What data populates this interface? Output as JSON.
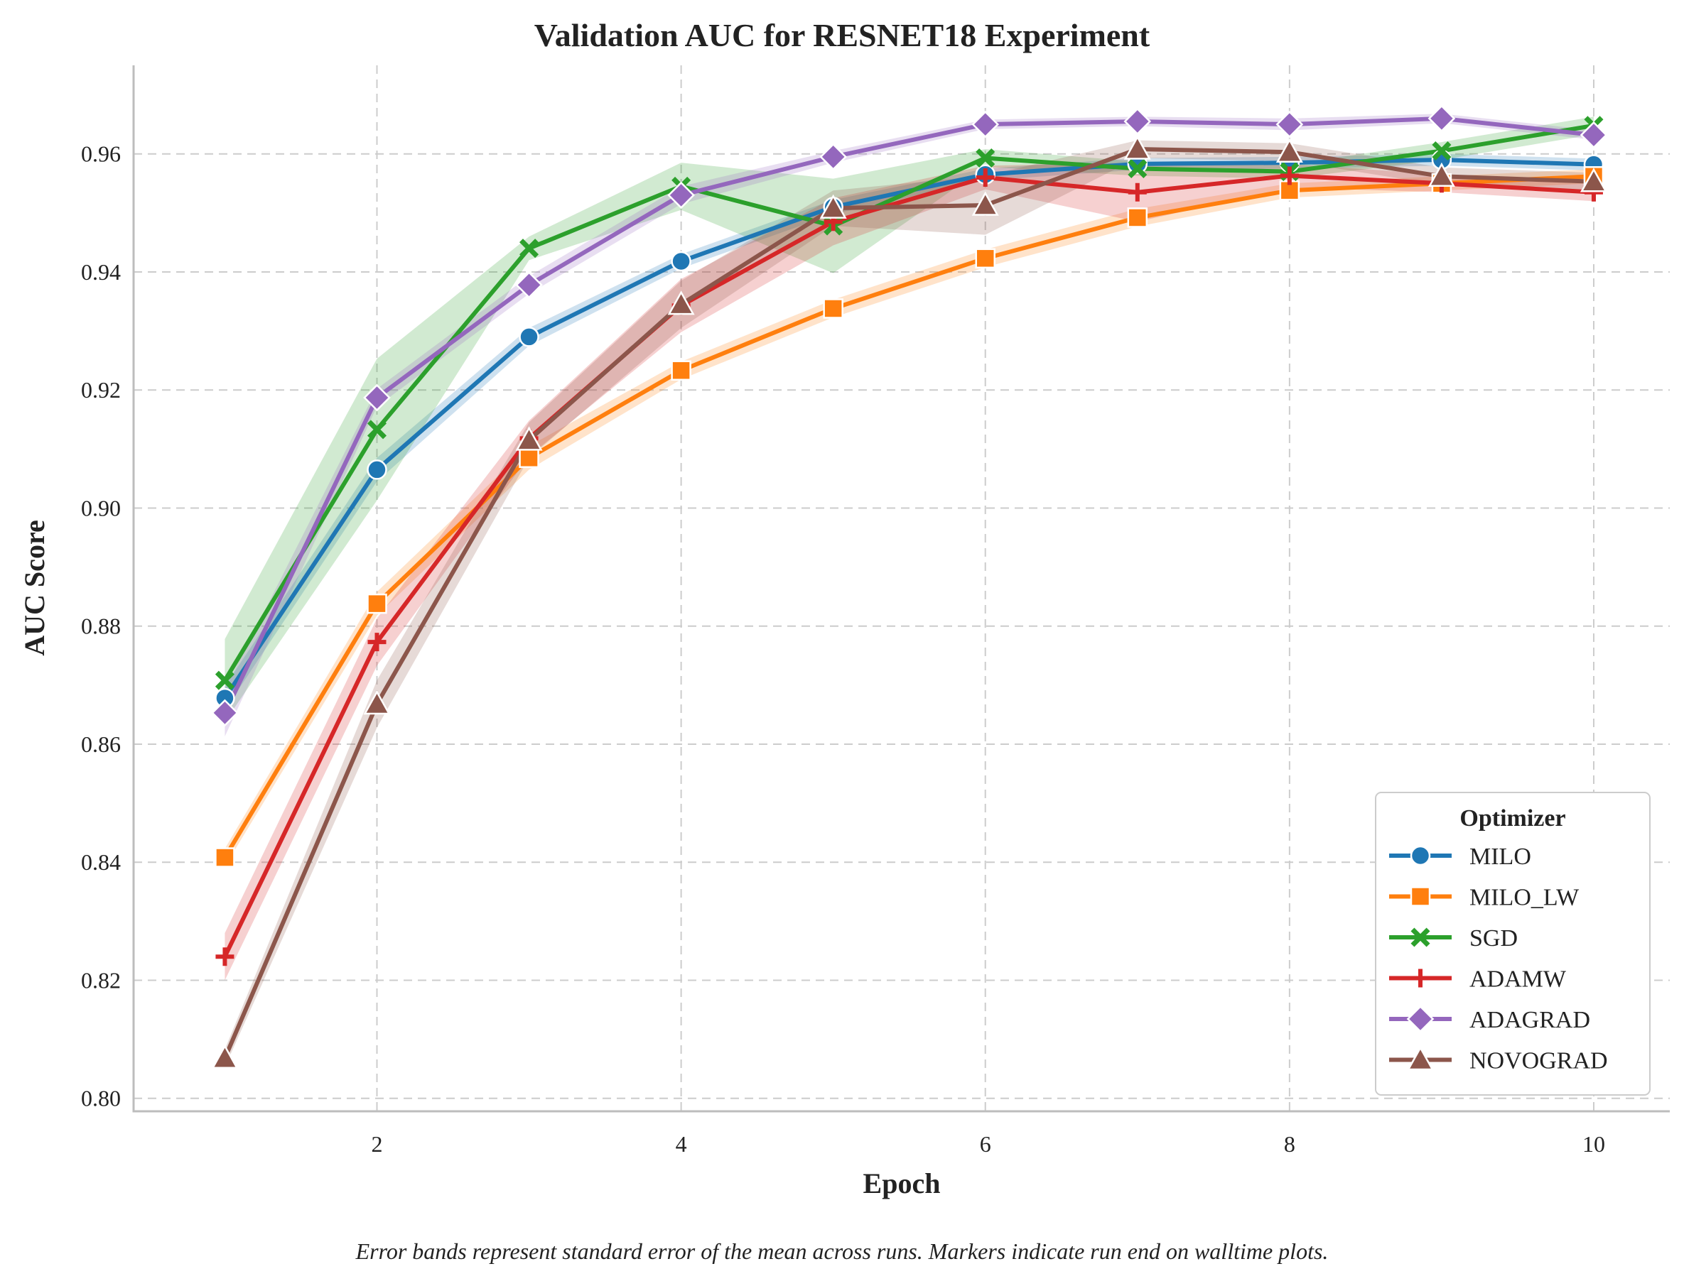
{
  "chart_data": {
    "type": "line",
    "title": "Validation AUC for RESNET18 Experiment",
    "xlabel": "Epoch",
    "ylabel": "AUC Score",
    "xlim": [
      0.4,
      10.5
    ],
    "ylim": [
      0.7978,
      0.975
    ],
    "xticks": [
      2,
      4,
      6,
      8,
      10
    ],
    "yticks": [
      0.8,
      0.82,
      0.84,
      0.86,
      0.88,
      0.9,
      0.92,
      0.94,
      0.96
    ],
    "grid": true,
    "legend": {
      "title": "Optimizer",
      "placement": "bottom-right"
    },
    "caption": "Error bands represent standard error of the mean across runs. Markers indicate run end on walltime plots.",
    "x": [
      1,
      2,
      3,
      4,
      5,
      6,
      7,
      8,
      9,
      10
    ],
    "series": [
      {
        "name": "MILO",
        "color": "#1f77b4",
        "marker": "circle",
        "values": [
          0.8678,
          0.9065,
          0.929,
          0.9418,
          0.951,
          0.9565,
          0.9583,
          0.9585,
          0.959,
          0.9582
        ],
        "err": [
          0.002,
          0.002,
          0.0015,
          0.0012,
          0.0012,
          0.001,
          0.001,
          0.001,
          0.001,
          0.001
        ]
      },
      {
        "name": "MILO_LW",
        "color": "#ff7f0e",
        "marker": "square",
        "values": [
          0.8408,
          0.8838,
          0.9085,
          0.9233,
          0.9338,
          0.9423,
          0.9492,
          0.9538,
          0.955,
          0.9562
        ],
        "err": [
          0.0015,
          0.002,
          0.002,
          0.0015,
          0.0015,
          0.0015,
          0.0015,
          0.0012,
          0.0012,
          0.0012
        ]
      },
      {
        "name": "SGD",
        "color": "#2ca02c",
        "marker": "x",
        "values": [
          0.8708,
          0.9133,
          0.944,
          0.9545,
          0.9478,
          0.9593,
          0.9575,
          0.957,
          0.9605,
          0.9648
        ],
        "err": [
          0.007,
          0.012,
          0.002,
          0.004,
          0.008,
          0.0015,
          0.0012,
          0.0012,
          0.0015,
          0.0015
        ]
      },
      {
        "name": "ADAMW",
        "color": "#d62728",
        "marker": "plus",
        "values": [
          0.824,
          0.8773,
          0.9118,
          0.9343,
          0.9485,
          0.956,
          0.9535,
          0.9563,
          0.955,
          0.9535
        ],
        "err": [
          0.004,
          0.004,
          0.003,
          0.0045,
          0.004,
          0.002,
          0.005,
          0.002,
          0.0015,
          0.0015
        ]
      },
      {
        "name": "ADAGRAD",
        "color": "#9467bd",
        "marker": "diamond",
        "values": [
          0.8653,
          0.9187,
          0.9378,
          0.953,
          0.9595,
          0.965,
          0.9655,
          0.965,
          0.966,
          0.9632
        ],
        "err": [
          0.004,
          0.0015,
          0.0015,
          0.0015,
          0.001,
          0.0008,
          0.0008,
          0.001,
          0.0008,
          0.0008
        ]
      },
      {
        "name": "NOVOGRAD",
        "color": "#8c564b",
        "marker": "triangle",
        "values": [
          0.8068,
          0.8668,
          0.9115,
          0.9345,
          0.9508,
          0.9513,
          0.9608,
          0.9603,
          0.9562,
          0.9553
        ],
        "err": [
          0.0015,
          0.004,
          0.003,
          0.004,
          0.003,
          0.005,
          0.0015,
          0.0015,
          0.0015,
          0.0015
        ]
      }
    ]
  }
}
